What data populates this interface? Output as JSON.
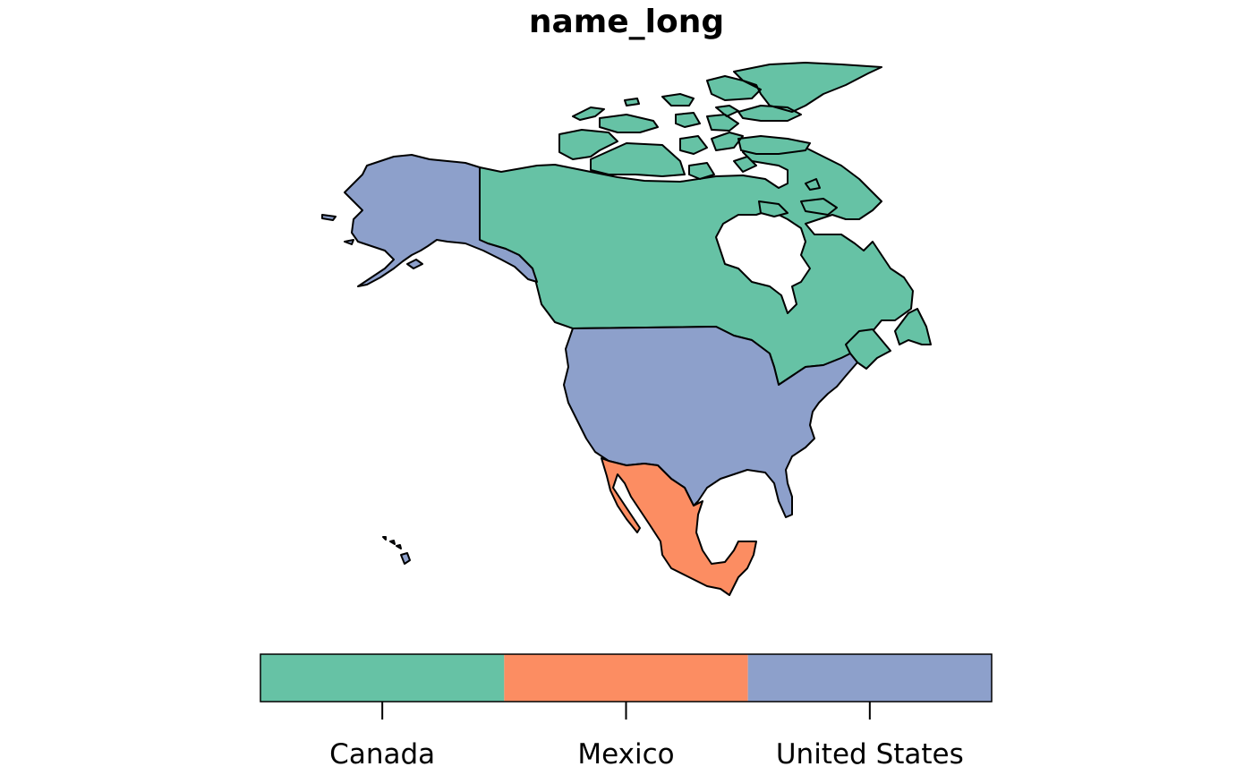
{
  "title": "name_long",
  "legend": {
    "items": [
      {
        "label": "Canada",
        "color": "#66C2A5"
      },
      {
        "label": "Mexico",
        "color": "#FC8D62"
      },
      {
        "label": "United States",
        "color": "#8DA0CB"
      }
    ]
  },
  "regions": [
    {
      "name": "Canada",
      "color": "#66C2A5"
    },
    {
      "name": "United States",
      "color": "#8DA0CB"
    },
    {
      "name": "Mexico",
      "color": "#FC8D62"
    }
  ]
}
